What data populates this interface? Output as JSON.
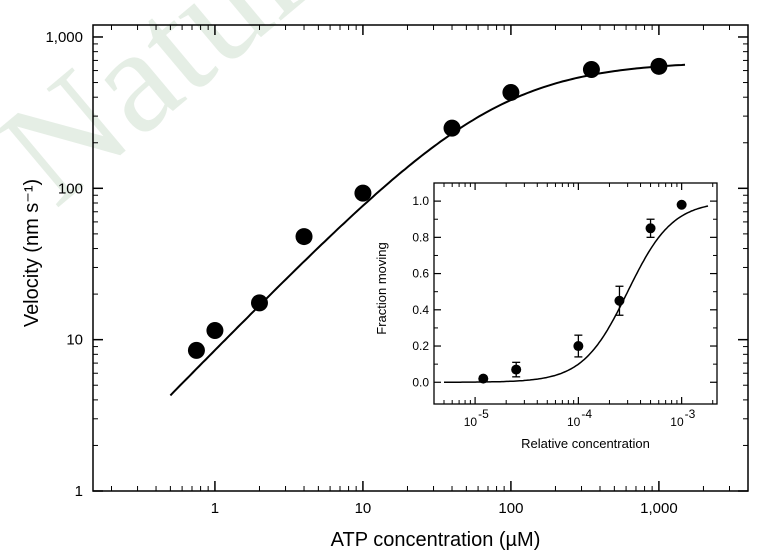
{
  "watermark": "Nature",
  "chart_data": [
    {
      "type": "scatter",
      "xscale": "log",
      "yscale": "log",
      "xlabel": "ATP concentration (µM)",
      "ylabel": "Velocity (nm s⁻¹)",
      "xlim": [
        0.15,
        4000
      ],
      "ylim": [
        1,
        1200
      ],
      "xticks": [
        {
          "v": 1,
          "label": "1"
        },
        {
          "v": 10,
          "label": "10"
        },
        {
          "v": 100,
          "label": "100"
        },
        {
          "v": 1000,
          "label": "1,000"
        }
      ],
      "yticks": [
        {
          "v": 1,
          "label": "1"
        },
        {
          "v": 10,
          "label": "10"
        },
        {
          "v": 100,
          "label": "100"
        },
        {
          "v": 1000,
          "label": "1,000"
        }
      ],
      "series": [
        {
          "x": [
            0.75,
            1.0,
            2.0,
            4.0,
            10,
            40,
            100,
            350,
            1000
          ],
          "y": [
            8.5,
            11.5,
            17.5,
            48,
            93,
            250,
            430,
            610,
            640
          ]
        }
      ],
      "fit": {
        "model": "michaelis-menten",
        "vmax": 690,
        "km": 80,
        "x_range": [
          0.5,
          1500
        ]
      }
    },
    {
      "type": "scatter",
      "xscale": "log",
      "xlabel": "Relative concentration",
      "ylabel": "Fraction moving",
      "xlim": [
        4e-06,
        0.0022
      ],
      "ylim": [
        -0.12,
        1.1
      ],
      "xticks": [
        {
          "v": 1e-05,
          "base": "10",
          "exp": "-5"
        },
        {
          "v": 0.0001,
          "base": "10",
          "exp": "-4"
        },
        {
          "v": 0.001,
          "base": "10",
          "exp": "-3"
        }
      ],
      "yticks": [
        {
          "v": 0.0,
          "label": "0.0"
        },
        {
          "v": 0.2,
          "label": "0.2"
        },
        {
          "v": 0.4,
          "label": "0.4"
        },
        {
          "v": 0.6,
          "label": "0.6"
        },
        {
          "v": 0.8,
          "label": "0.8"
        },
        {
          "v": 1.0,
          "label": "1.0"
        }
      ],
      "series": [
        {
          "x": [
            1.2e-05,
            2.5e-05,
            0.0001,
            0.00025,
            0.0005,
            0.001
          ],
          "y": [
            0.02,
            0.07,
            0.2,
            0.45,
            0.85,
            0.98
          ],
          "yerr": [
            0.01,
            0.04,
            0.06,
            0.08,
            0.05,
            0.01
          ]
        }
      ],
      "fit": {
        "model": "hill",
        "ec50": 0.0003,
        "n": 2,
        "x_range": [
          5e-06,
          0.0018
        ]
      }
    }
  ]
}
